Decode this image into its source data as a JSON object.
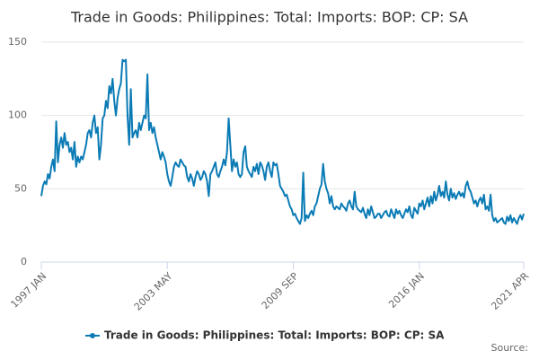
{
  "chart_data": {
    "type": "line",
    "title": "Trade in Goods: Philippines: Total: Imports: BOP: CP: SA",
    "source": "Source:",
    "categories": [
      "1997 JAN",
      null,
      null,
      null,
      null,
      null,
      null,
      null,
      null,
      null,
      null,
      null,
      null,
      null,
      null,
      null,
      null,
      null,
      null,
      null,
      null,
      null,
      null,
      null,
      null,
      null,
      null,
      null,
      null,
      null,
      null,
      null,
      null,
      null,
      null,
      null,
      null,
      null,
      null,
      null,
      null,
      null,
      null,
      null,
      null,
      null,
      null,
      null,
      null,
      null,
      null,
      null,
      null,
      null,
      null,
      null,
      null,
      null,
      null,
      null,
      null,
      null,
      null,
      null,
      null,
      null,
      null,
      null,
      null,
      null,
      null,
      null,
      null,
      null,
      null,
      null,
      "2003 MAY",
      null,
      null,
      null,
      null,
      null,
      null,
      null,
      null,
      null,
      null,
      null,
      null,
      null,
      null,
      null,
      null,
      null,
      null,
      null,
      null,
      null,
      null,
      null,
      null,
      null,
      null,
      null,
      null,
      null,
      null,
      null,
      null,
      null,
      null,
      null,
      null,
      null,
      null,
      null,
      null,
      null,
      null,
      null,
      null,
      null,
      null,
      null,
      null,
      null,
      null,
      null,
      null,
      null,
      null,
      null,
      null,
      null,
      null,
      null,
      null,
      null,
      null,
      null,
      null,
      null,
      null,
      null,
      null,
      null,
      null,
      null,
      null,
      null,
      null,
      null,
      "2009 SEP",
      null,
      null,
      null,
      null,
      null,
      null,
      null,
      null,
      null,
      null,
      null,
      null,
      null,
      null,
      null,
      null,
      null,
      null,
      null,
      null,
      null,
      null,
      null,
      null,
      null,
      null,
      null,
      null,
      null,
      null,
      null,
      null,
      null,
      null,
      null,
      null,
      null,
      null,
      null,
      null,
      null,
      null,
      null,
      null,
      null,
      null,
      null,
      null,
      null,
      null,
      null,
      null,
      null,
      null,
      null,
      null,
      null,
      null,
      null,
      null,
      null,
      null,
      null,
      null,
      null,
      null,
      null,
      null,
      null,
      null,
      null,
      null,
      null,
      null,
      null,
      "2016 JAN",
      null,
      null,
      null,
      null,
      null,
      null,
      null,
      null,
      null,
      null,
      null,
      null,
      null,
      null,
      null,
      null,
      null,
      null,
      null,
      null,
      null,
      null,
      null,
      null,
      null,
      null,
      null,
      null,
      null,
      null,
      null,
      null,
      null,
      null,
      null,
      null,
      null,
      null,
      null,
      null,
      null,
      null,
      null,
      null,
      null,
      null,
      null,
      null,
      null,
      null,
      null,
      null,
      null,
      null,
      null,
      null,
      null,
      null,
      null,
      null,
      null,
      null,
      "2021 APR"
    ],
    "series": [
      {
        "name": "Trade in Goods: Philippines: Total: Imports: BOP: CP: SA",
        "color": "#0b7bb5",
        "values": [
          45,
          52,
          55,
          53,
          60,
          57,
          65,
          70,
          62,
          96,
          68,
          80,
          85,
          78,
          88,
          80,
          82,
          75,
          78,
          70,
          82,
          65,
          72,
          68,
          72,
          70,
          75,
          80,
          88,
          90,
          85,
          95,
          100,
          88,
          92,
          70,
          80,
          98,
          100,
          110,
          105,
          120,
          115,
          125,
          110,
          100,
          112,
          118,
          122,
          138,
          137,
          138,
          100,
          80,
          118,
          85,
          88,
          90,
          85,
          95,
          90,
          95,
          100,
          98,
          128,
          90,
          95,
          88,
          92,
          85,
          80,
          75,
          70,
          75,
          72,
          68,
          60,
          55,
          52,
          58,
          65,
          68,
          66,
          65,
          70,
          68,
          66,
          65,
          58,
          55,
          60,
          57,
          52,
          58,
          62,
          60,
          56,
          58,
          62,
          60,
          55,
          45,
          60,
          62,
          65,
          68,
          60,
          58,
          62,
          65,
          70,
          66,
          75,
          98,
          80,
          62,
          70,
          65,
          68,
          60,
          58,
          60,
          75,
          79,
          65,
          62,
          60,
          58,
          65,
          62,
          67,
          60,
          68,
          66,
          62,
          56,
          65,
          68,
          62,
          58,
          68,
          66,
          67,
          60,
          52,
          50,
          48,
          45,
          46,
          42,
          38,
          36,
          32,
          33,
          30,
          28,
          26,
          30,
          61,
          28,
          32,
          30,
          33,
          35,
          32,
          38,
          40,
          45,
          50,
          53,
          67,
          55,
          50,
          47,
          40,
          45,
          38,
          36,
          38,
          37,
          36,
          40,
          38,
          37,
          35,
          40,
          42,
          38,
          36,
          48,
          38,
          36,
          35,
          34,
          37,
          33,
          30,
          36,
          32,
          38,
          34,
          30,
          31,
          33,
          33,
          30,
          32,
          34,
          35,
          32,
          31,
          36,
          33,
          30,
          36,
          33,
          35,
          32,
          30,
          33,
          36,
          34,
          38,
          32,
          30,
          37,
          35,
          33,
          40,
          38,
          42,
          36,
          40,
          44,
          38,
          45,
          40,
          48,
          42,
          46,
          52,
          45,
          48,
          44,
          55,
          46,
          42,
          50,
          44,
          47,
          43,
          46,
          48,
          45,
          47,
          44,
          52,
          55,
          50,
          48,
          44,
          40,
          42,
          38,
          42,
          44,
          40,
          46,
          36,
          38,
          35,
          46,
          32,
          28,
          30,
          27,
          28,
          29,
          30,
          27,
          26,
          31,
          28,
          32,
          27,
          30,
          28,
          26,
          30,
          32,
          29,
          33
        ]
      }
    ],
    "ylim": [
      0,
      150
    ],
    "yticks": [
      0,
      50,
      100,
      150
    ],
    "grid": true
  }
}
